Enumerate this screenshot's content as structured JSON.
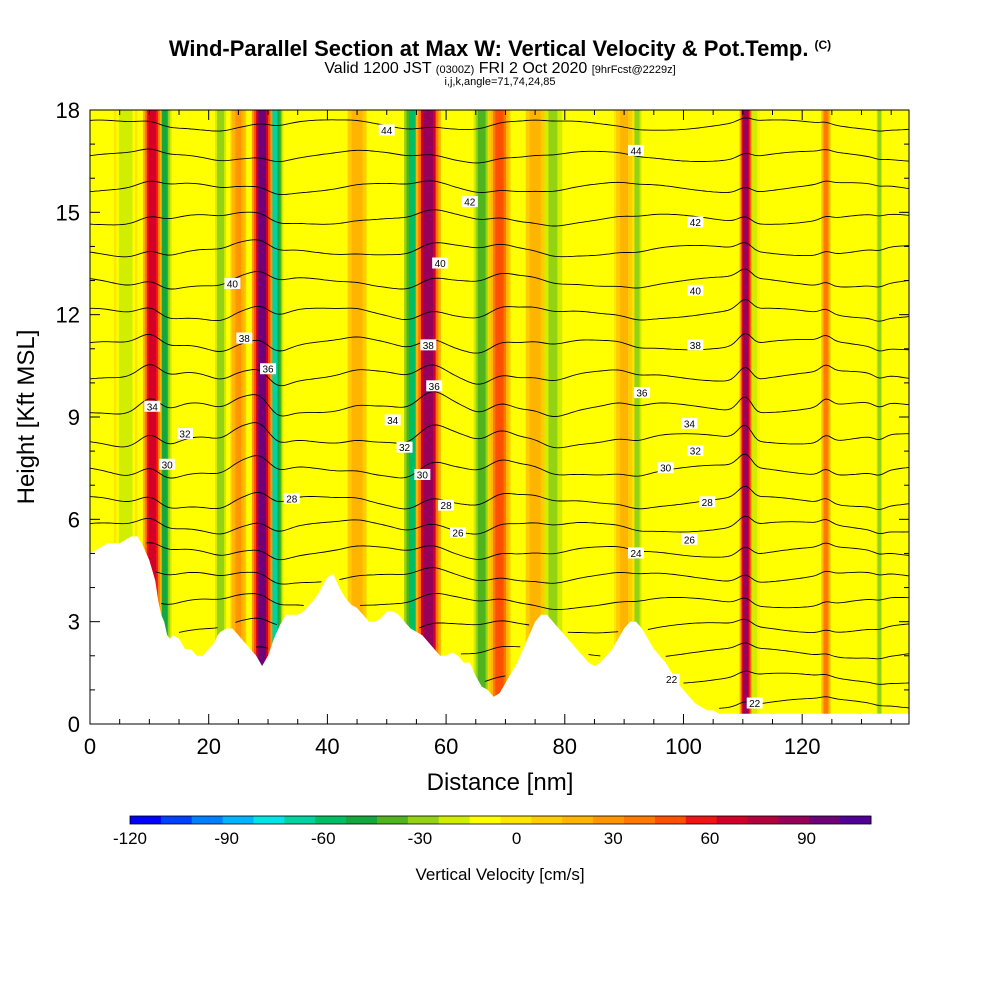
{
  "chart_data": {
    "type": "heatmap",
    "title": "Wind-Parallel Section at Max W: Vertical Velocity & Pot.Temp.",
    "title_mark": "(C)",
    "subtitle_parts": [
      "Valid 1200 JST",
      "(0300Z)",
      "FRI 2 Oct 2020",
      "[9hrFcst@2229z]"
    ],
    "subtitle2": "i,j,k,angle=71,74,24,85",
    "xlabel": "Distance [nm]",
    "ylabel": "Height [Kft MSL]",
    "xlim": [
      0,
      138
    ],
    "ylim": [
      0,
      18
    ],
    "xticks": [
      0,
      20,
      40,
      60,
      80,
      100,
      120
    ],
    "yticks": [
      0,
      3,
      6,
      9,
      12,
      15,
      18
    ],
    "colorbar": {
      "title": "Vertical Velocity [cm/s]",
      "ticks": [
        -120,
        -90,
        -60,
        -30,
        0,
        30,
        60,
        90
      ],
      "range": [
        -120,
        110
      ],
      "colors": [
        "#0000ff",
        "#0040ff",
        "#0080ff",
        "#00b4ff",
        "#00e6e6",
        "#00d2a0",
        "#00be64",
        "#14a83c",
        "#50b41e",
        "#96d214",
        "#d2ee00",
        "#ffff00",
        "#ffe600",
        "#ffcc00",
        "#ffb400",
        "#ff9600",
        "#ff7800",
        "#ff5000",
        "#f01414",
        "#d20028",
        "#b4003c",
        "#96005a",
        "#6e0078",
        "#500096"
      ]
    },
    "updrafts": [
      {
        "x": 10.5,
        "w": 70,
        "width": 1.2
      },
      {
        "x": 29,
        "w": 95,
        "width": 1.3
      },
      {
        "x": 57,
        "w": 85,
        "width": 1.6
      },
      {
        "x": 69,
        "w": 45,
        "width": 1.4
      },
      {
        "x": 110.5,
        "w": 90,
        "width": 0.8
      },
      {
        "x": 25,
        "w": 30,
        "width": 1.0
      },
      {
        "x": 45,
        "w": 20,
        "width": 1.2
      },
      {
        "x": 75,
        "w": 20,
        "width": 1.2
      },
      {
        "x": 90,
        "w": 15,
        "width": 1.3
      },
      {
        "x": 124,
        "w": 40,
        "width": 0.6
      }
    ],
    "downdrafts": [
      {
        "x": 12.5,
        "w": -45,
        "width": 1.2
      },
      {
        "x": 31,
        "w": -70,
        "width": 1.2
      },
      {
        "x": 54.5,
        "w": -55,
        "width": 1.5
      },
      {
        "x": 66,
        "w": -40,
        "width": 1.3
      },
      {
        "x": 6,
        "w": -20,
        "width": 1.5
      },
      {
        "x": 22,
        "w": -25,
        "width": 1.2
      },
      {
        "x": 78,
        "w": -30,
        "width": 1.5
      },
      {
        "x": 92,
        "w": -25,
        "width": 1.2
      },
      {
        "x": 112,
        "w": -20,
        "width": 0.6
      },
      {
        "x": 133,
        "w": -25,
        "width": 0.6
      }
    ],
    "isentropes": {
      "levels": [
        22,
        23,
        24,
        25,
        26,
        27,
        28,
        29,
        30,
        31,
        32,
        33,
        34,
        35,
        36,
        37,
        38,
        39,
        40,
        41,
        42,
        43,
        44,
        45
      ],
      "labeled": [
        {
          "value": "44",
          "x": 50,
          "y": 17.4
        },
        {
          "value": "44",
          "x": 92,
          "y": 16.8
        },
        {
          "value": "42",
          "x": 64,
          "y": 15.3
        },
        {
          "value": "42",
          "x": 102,
          "y": 14.7
        },
        {
          "value": "40",
          "x": 24,
          "y": 12.9
        },
        {
          "value": "40",
          "x": 59,
          "y": 13.5
        },
        {
          "value": "40",
          "x": 102,
          "y": 12.7
        },
        {
          "value": "38",
          "x": 26,
          "y": 11.3
        },
        {
          "value": "38",
          "x": 57,
          "y": 11.1
        },
        {
          "value": "38",
          "x": 102,
          "y": 11.1
        },
        {
          "value": "36",
          "x": 30,
          "y": 10.4
        },
        {
          "value": "36",
          "x": 58,
          "y": 9.9
        },
        {
          "value": "36",
          "x": 93,
          "y": 9.7
        },
        {
          "value": "34",
          "x": 10.5,
          "y": 9.3
        },
        {
          "value": "34",
          "x": 51,
          "y": 8.9
        },
        {
          "value": "34",
          "x": 101,
          "y": 8.8
        },
        {
          "value": "32",
          "x": 16,
          "y": 8.5
        },
        {
          "value": "32",
          "x": 53,
          "y": 8.1
        },
        {
          "value": "32",
          "x": 102,
          "y": 8.0
        },
        {
          "value": "30",
          "x": 13,
          "y": 7.6
        },
        {
          "value": "30",
          "x": 56,
          "y": 7.3
        },
        {
          "value": "30",
          "x": 97,
          "y": 7.5
        },
        {
          "value": "28",
          "x": 34,
          "y": 6.6
        },
        {
          "value": "28",
          "x": 60,
          "y": 6.4
        },
        {
          "value": "28",
          "x": 104,
          "y": 6.5
        },
        {
          "value": "26",
          "x": 62,
          "y": 5.6
        },
        {
          "value": "26",
          "x": 101,
          "y": 5.4
        },
        {
          "value": "24",
          "x": 92,
          "y": 5.0
        },
        {
          "value": "22",
          "x": 98,
          "y": 1.3
        },
        {
          "value": "22",
          "x": 112,
          "y": 0.6
        }
      ]
    },
    "terrain_kft": [
      [
        0,
        5.0
      ],
      [
        2,
        5.2
      ],
      [
        3,
        5.3
      ],
      [
        5,
        5.3
      ],
      [
        7,
        5.5
      ],
      [
        8,
        5.5
      ],
      [
        9,
        5.2
      ],
      [
        10,
        4.8
      ],
      [
        11,
        4.2
      ],
      [
        11.5,
        3.6
      ],
      [
        12,
        3.2
      ],
      [
        12.5,
        3.0
      ],
      [
        13,
        2.6
      ],
      [
        13.5,
        2.5
      ],
      [
        14,
        2.6
      ],
      [
        15,
        2.5
      ],
      [
        16,
        2.2
      ],
      [
        17,
        2.2
      ],
      [
        18,
        2.0
      ],
      [
        19,
        2.0
      ],
      [
        20,
        2.2
      ],
      [
        21,
        2.4
      ],
      [
        21.5,
        2.6
      ],
      [
        22,
        2.7
      ],
      [
        23,
        2.8
      ],
      [
        24,
        2.8
      ],
      [
        25,
        2.6
      ],
      [
        26,
        2.4
      ],
      [
        27,
        2.2
      ],
      [
        28,
        2.0
      ],
      [
        29,
        1.7
      ],
      [
        30,
        2.0
      ],
      [
        31,
        2.5
      ],
      [
        32,
        2.9
      ],
      [
        33,
        3.2
      ],
      [
        34,
        3.2
      ],
      [
        35,
        3.2
      ],
      [
        36,
        3.3
      ],
      [
        37,
        3.5
      ],
      [
        38,
        3.7
      ],
      [
        39,
        4.0
      ],
      [
        40,
        4.3
      ],
      [
        41,
        4.4
      ],
      [
        42,
        4.0
      ],
      [
        43,
        3.7
      ],
      [
        44,
        3.5
      ],
      [
        45,
        3.4
      ],
      [
        46,
        3.2
      ],
      [
        47,
        3.0
      ],
      [
        48,
        3.0
      ],
      [
        49,
        3.1
      ],
      [
        50,
        3.3
      ],
      [
        51,
        3.3
      ],
      [
        52,
        3.2
      ],
      [
        53,
        3.0
      ],
      [
        54,
        2.8
      ],
      [
        55,
        2.7
      ],
      [
        56,
        2.6
      ],
      [
        57,
        2.4
      ],
      [
        58,
        2.2
      ],
      [
        59,
        2.0
      ],
      [
        60,
        2.0
      ],
      [
        61,
        2.1
      ],
      [
        62,
        2.0
      ],
      [
        63,
        1.8
      ],
      [
        64,
        1.8
      ],
      [
        65,
        1.4
      ],
      [
        66,
        1.1
      ],
      [
        67,
        1.0
      ],
      [
        68,
        0.8
      ],
      [
        69,
        0.9
      ],
      [
        70,
        1.2
      ],
      [
        71,
        1.5
      ],
      [
        72,
        1.8
      ],
      [
        73,
        2.2
      ],
      [
        74,
        2.6
      ],
      [
        75,
        3.0
      ],
      [
        76,
        3.2
      ],
      [
        77,
        3.2
      ],
      [
        78,
        3.0
      ],
      [
        79,
        2.8
      ],
      [
        80,
        2.6
      ],
      [
        81,
        2.4
      ],
      [
        82,
        2.2
      ],
      [
        83,
        2.0
      ],
      [
        84,
        1.8
      ],
      [
        85,
        1.7
      ],
      [
        86,
        1.8
      ],
      [
        87,
        2.0
      ],
      [
        88,
        2.2
      ],
      [
        89,
        2.5
      ],
      [
        90,
        2.8
      ],
      [
        91,
        3.0
      ],
      [
        92,
        3.0
      ],
      [
        93,
        2.8
      ],
      [
        94,
        2.5
      ],
      [
        95,
        2.2
      ],
      [
        96,
        2.0
      ],
      [
        97,
        1.8
      ],
      [
        98,
        1.5
      ],
      [
        99,
        1.2
      ],
      [
        100,
        1.0
      ],
      [
        101,
        0.8
      ],
      [
        102,
        0.6
      ],
      [
        103,
        0.5
      ],
      [
        104,
        0.4
      ],
      [
        105,
        0.4
      ],
      [
        106,
        0.3
      ],
      [
        110,
        0.3
      ],
      [
        115,
        0.3
      ],
      [
        120,
        0.3
      ],
      [
        125,
        0.3
      ],
      [
        130,
        0.3
      ],
      [
        138,
        0.3
      ]
    ]
  }
}
